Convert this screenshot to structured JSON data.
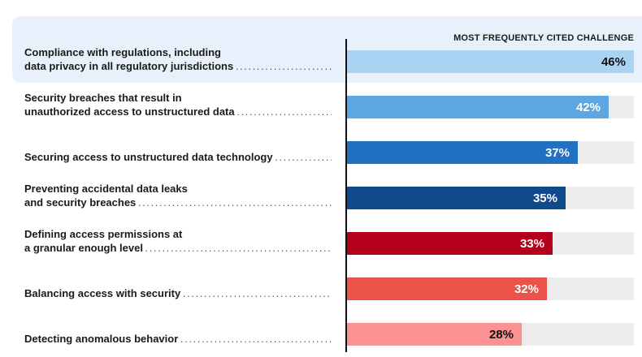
{
  "chart_data": {
    "type": "bar",
    "orientation": "horizontal",
    "title": "MOST FREQUENTLY CITED CHALLENGE",
    "unit": "%",
    "xlim": [
      0,
      46
    ],
    "categories": [
      [
        "Compliance with regulations, including",
        "data privacy in all regulatory jurisdictions"
      ],
      [
        "Security breaches that result in",
        "unauthorized access to unstructured data"
      ],
      [
        "Securing access to unstructured data technology"
      ],
      [
        "Preventing accidental data leaks",
        "and security breaches"
      ],
      [
        "Defining access permissions at",
        "a granular enough level"
      ],
      [
        "Balancing access with security"
      ],
      [
        "Detecting anomalous behavior"
      ]
    ],
    "values": [
      46,
      42,
      37,
      35,
      33,
      32,
      28
    ],
    "value_labels": [
      "46%",
      "42%",
      "37%",
      "35%",
      "33%",
      "32%",
      "28%"
    ],
    "bar_colors": [
      "#a9d3f3",
      "#5ea6e2",
      "#2270c2",
      "#0f4a8c",
      "#b5001b",
      "#ec5348",
      "#fb9190"
    ],
    "label_colors": [
      "#111111",
      "#ffffff",
      "#ffffff",
      "#ffffff",
      "#ffffff",
      "#ffffff",
      "#111111"
    ],
    "highlighted_index": 0,
    "track_color": "#ececec"
  }
}
